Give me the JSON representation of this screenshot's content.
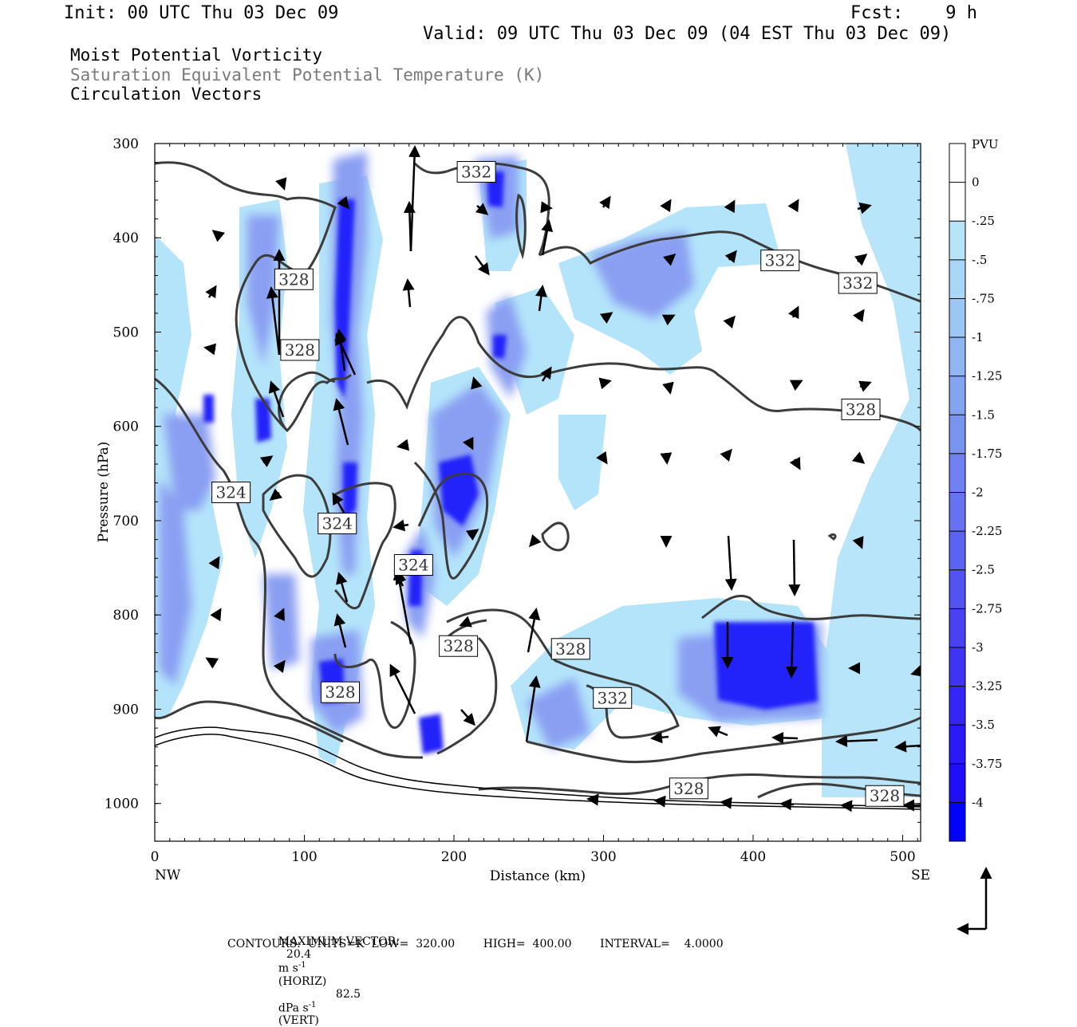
{
  "header": {
    "init": "Init: 00 UTC Thu 03 Dec 09",
    "fcst": "Fcst:    9 h",
    "valid": "Valid: 09 UTC Thu 03 Dec 09 (04 EST Thu 03 Dec 09)"
  },
  "titles": [
    {
      "text": "Moist Potential Vorticity",
      "color": "#000000"
    },
    {
      "text": "Saturation Equivalent Potential Temperature (K)",
      "color": "#7a7a7a"
    },
    {
      "text": "Circulation Vectors",
      "color": "#000000"
    }
  ],
  "colors": {
    "contour": "#3c3c3c",
    "pv_min": "#0000ff",
    "pv_light": "#b4e4fa"
  },
  "chart_data": {
    "type": "cross-section",
    "xlabel": "Distance (km)",
    "ylabel": "Pressure (hPa)",
    "xlim": [
      0,
      512
    ],
    "ylim": [
      1040,
      300
    ],
    "x_ticks": [
      0,
      100,
      200,
      300,
      400,
      500
    ],
    "y_ticks": [
      300,
      400,
      500,
      600,
      700,
      800,
      900,
      1000
    ],
    "x_tick_labels": [
      "0",
      "100",
      "200",
      "300",
      "400",
      "500"
    ],
    "y_tick_labels": [
      "300",
      "400",
      "500",
      "600",
      "700",
      "800",
      "900",
      "1000"
    ],
    "left_end_label": "NW",
    "right_end_label": "SE",
    "colorbar": {
      "unit": "PVU",
      "labels": [
        "0",
        "-.25",
        "-.5",
        "-.75",
        "-1",
        "-1.25",
        "-1.5",
        "-1.75",
        "-2",
        "-2.25",
        "-2.5",
        "-2.75",
        "-3",
        "-3.25",
        "-3.5",
        "-3.75",
        "-4"
      ],
      "colors": [
        "#ffffff",
        "#ffffff",
        "#b9e3fa",
        "#a9d6f7",
        "#9bc6f5",
        "#8fb5f3",
        "#84a4f2",
        "#7a93f1",
        "#7082f1",
        "#6672f1",
        "#5c62f2",
        "#5352f3",
        "#4942f4",
        "#3f33f6",
        "#3526f8",
        "#2a19fa",
        "#1f0dfc",
        "#0000ff"
      ]
    },
    "contour_labels": [
      {
        "text": "332",
        "x": 215,
        "p": 330
      },
      {
        "text": "332",
        "x": 418,
        "p": 424
      },
      {
        "text": "332",
        "x": 470,
        "p": 448
      },
      {
        "text": "328",
        "x": 93,
        "p": 444
      },
      {
        "text": "328",
        "x": 97,
        "p": 519
      },
      {
        "text": "328",
        "x": 472,
        "p": 582
      },
      {
        "text": "324",
        "x": 51,
        "p": 670
      },
      {
        "text": "324",
        "x": 122,
        "p": 703
      },
      {
        "text": "324",
        "x": 173,
        "p": 747
      },
      {
        "text": "328",
        "x": 203,
        "p": 833
      },
      {
        "text": "328",
        "x": 278,
        "p": 836
      },
      {
        "text": "332",
        "x": 306,
        "p": 888
      },
      {
        "text": "328",
        "x": 124,
        "p": 882
      },
      {
        "text": "328",
        "x": 357,
        "p": 984
      },
      {
        "text": "328",
        "x": 488,
        "p": 992
      }
    ],
    "footer": {
      "max_vector_label": "MAXIMUM VECTOR:",
      "horiz_value": "20.4",
      "horiz_unit": "m s",
      "horiz_note": "(HORIZ)",
      "vert_value": "82.5",
      "vert_unit": "dPa s",
      "vert_note": "(VERT)",
      "exponent": "-1",
      "contours_line": "CONTOURS:  UNITS=K  LOW=  320.00        HIGH=  400.00        INTERVAL=    4.0000"
    }
  }
}
